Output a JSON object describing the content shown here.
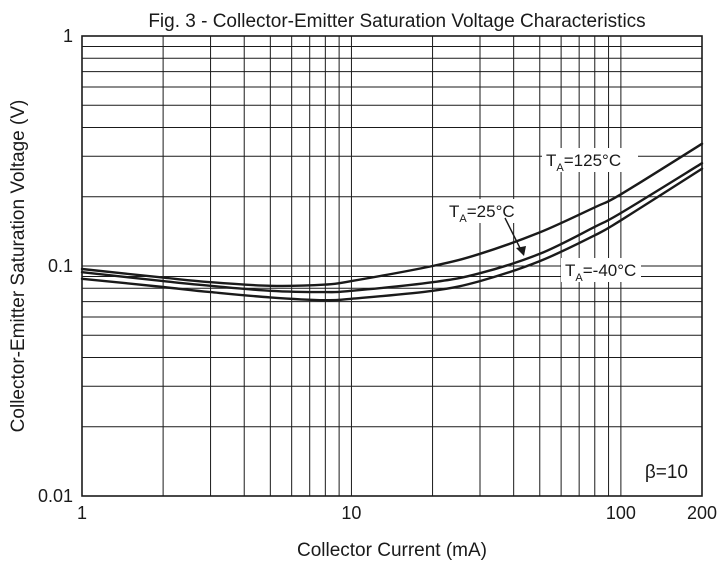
{
  "chart_data": {
    "type": "line",
    "title": "Fig. 3 - Collector-Emitter Saturation Voltage Characteristics",
    "xlabel": "Collector Current (mA)",
    "ylabel": "Collector-Emitter Saturation Voltage (V)",
    "x_scale": "log",
    "y_scale": "log",
    "xlim": [
      1,
      200
    ],
    "ylim": [
      0.01,
      1
    ],
    "x_ticks": [
      1,
      10,
      100,
      200
    ],
    "x_tick_labels": [
      "1",
      "10",
      "100",
      "200"
    ],
    "y_ticks": [
      0.01,
      0.1,
      1
    ],
    "y_tick_labels": [
      "0.01",
      "0.1",
      "1"
    ],
    "grid": true,
    "condition_label": "β=10",
    "series": [
      {
        "name": "TA=125°C",
        "label_sub": "A",
        "label_rest": "=125°C",
        "x": [
          1,
          2,
          3,
          5,
          8,
          10,
          20,
          30,
          50,
          80,
          100,
          200
        ],
        "y": [
          0.097,
          0.089,
          0.085,
          0.082,
          0.083,
          0.086,
          0.1,
          0.113,
          0.14,
          0.18,
          0.205,
          0.34
        ]
      },
      {
        "name": "TA=25°C",
        "label_sub": "A",
        "label_rest": "=25°C",
        "x": [
          1,
          2,
          3,
          5,
          8,
          10,
          20,
          30,
          50,
          80,
          100,
          200
        ],
        "y": [
          0.094,
          0.086,
          0.082,
          0.078,
          0.077,
          0.078,
          0.085,
          0.093,
          0.113,
          0.148,
          0.17,
          0.28
        ]
      },
      {
        "name": "TA=-40°C",
        "label_sub": "A",
        "label_rest": "=-40°C",
        "x": [
          1,
          2,
          3,
          5,
          8,
          10,
          20,
          30,
          50,
          80,
          100,
          200
        ],
        "y": [
          0.088,
          0.081,
          0.077,
          0.073,
          0.071,
          0.072,
          0.078,
          0.086,
          0.105,
          0.136,
          0.158,
          0.265
        ]
      }
    ]
  }
}
